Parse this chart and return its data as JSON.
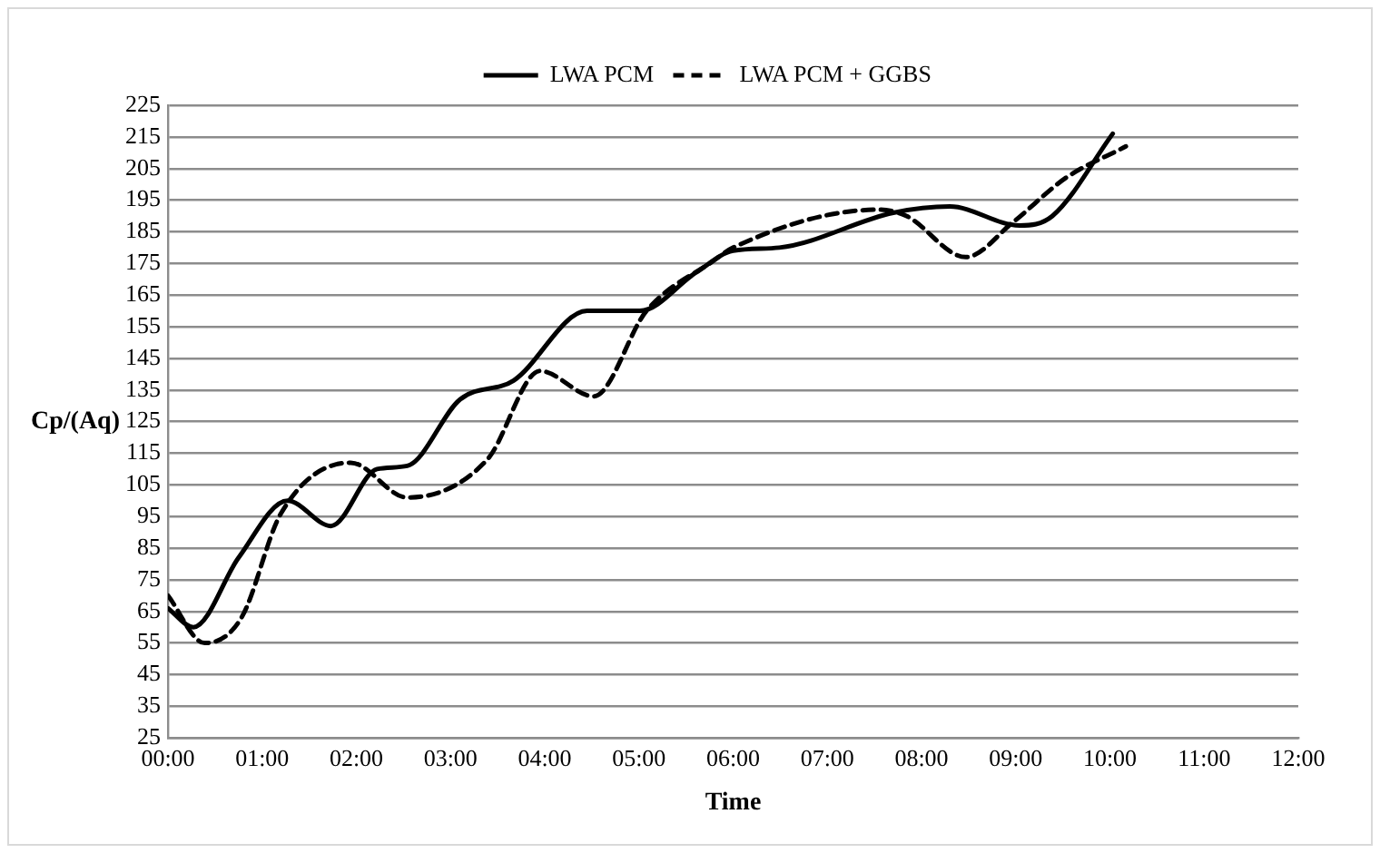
{
  "chart_data": {
    "type": "line",
    "xlabel": "Time",
    "ylabel": "Cp/(Aq)",
    "xlim": [
      0,
      12
    ],
    "xticks": [
      {
        "value": 0,
        "label": "00:00"
      },
      {
        "value": 1,
        "label": "01:00"
      },
      {
        "value": 2,
        "label": "02:00"
      },
      {
        "value": 3,
        "label": "03:00"
      },
      {
        "value": 4,
        "label": "04:00"
      },
      {
        "value": 5,
        "label": "05:00"
      },
      {
        "value": 6,
        "label": "06:00"
      },
      {
        "value": 7,
        "label": "07:00"
      },
      {
        "value": 8,
        "label": "08:00"
      },
      {
        "value": 9,
        "label": "09:00"
      },
      {
        "value": 10,
        "label": "10:00"
      },
      {
        "value": 11,
        "label": "11:00"
      },
      {
        "value": 12,
        "label": "12:00"
      }
    ],
    "ylim": [
      25,
      225
    ],
    "yticks": [
      25,
      35,
      45,
      55,
      65,
      75,
      85,
      95,
      105,
      115,
      125,
      135,
      145,
      155,
      165,
      175,
      185,
      195,
      205,
      215,
      225
    ],
    "grid": "y",
    "legend": "top",
    "marker": "none",
    "series": [
      {
        "name": "LWA PCM",
        "color": "#000000",
        "line_style": "solid",
        "x": [
          0,
          0.27,
          0.75,
          1.27,
          1.73,
          2.22,
          2.54,
          3.1,
          3.67,
          4.45,
          5.01,
          5.6,
          6.0,
          6.49,
          7.7,
          8.3,
          9.04,
          9.39,
          10.03
        ],
        "values": [
          66,
          60,
          82,
          100,
          92,
          110,
          111,
          132,
          138,
          160,
          160,
          172,
          179,
          180,
          191,
          193,
          187,
          190,
          216
        ]
      },
      {
        "name": "LWA PCM + GGBS",
        "color": "#000000",
        "line_style": "dashed",
        "x": [
          0,
          0.39,
          0.78,
          1.2,
          1.94,
          2.54,
          3.39,
          3.95,
          4.52,
          5.08,
          5.8,
          6.0,
          7.55,
          7.84,
          8.47,
          8.97,
          9.53,
          10.17
        ],
        "values": [
          70,
          55,
          63,
          96,
          112,
          101,
          113,
          141,
          133,
          160,
          176,
          180,
          192,
          190,
          177,
          188,
          202,
          212
        ]
      }
    ]
  }
}
